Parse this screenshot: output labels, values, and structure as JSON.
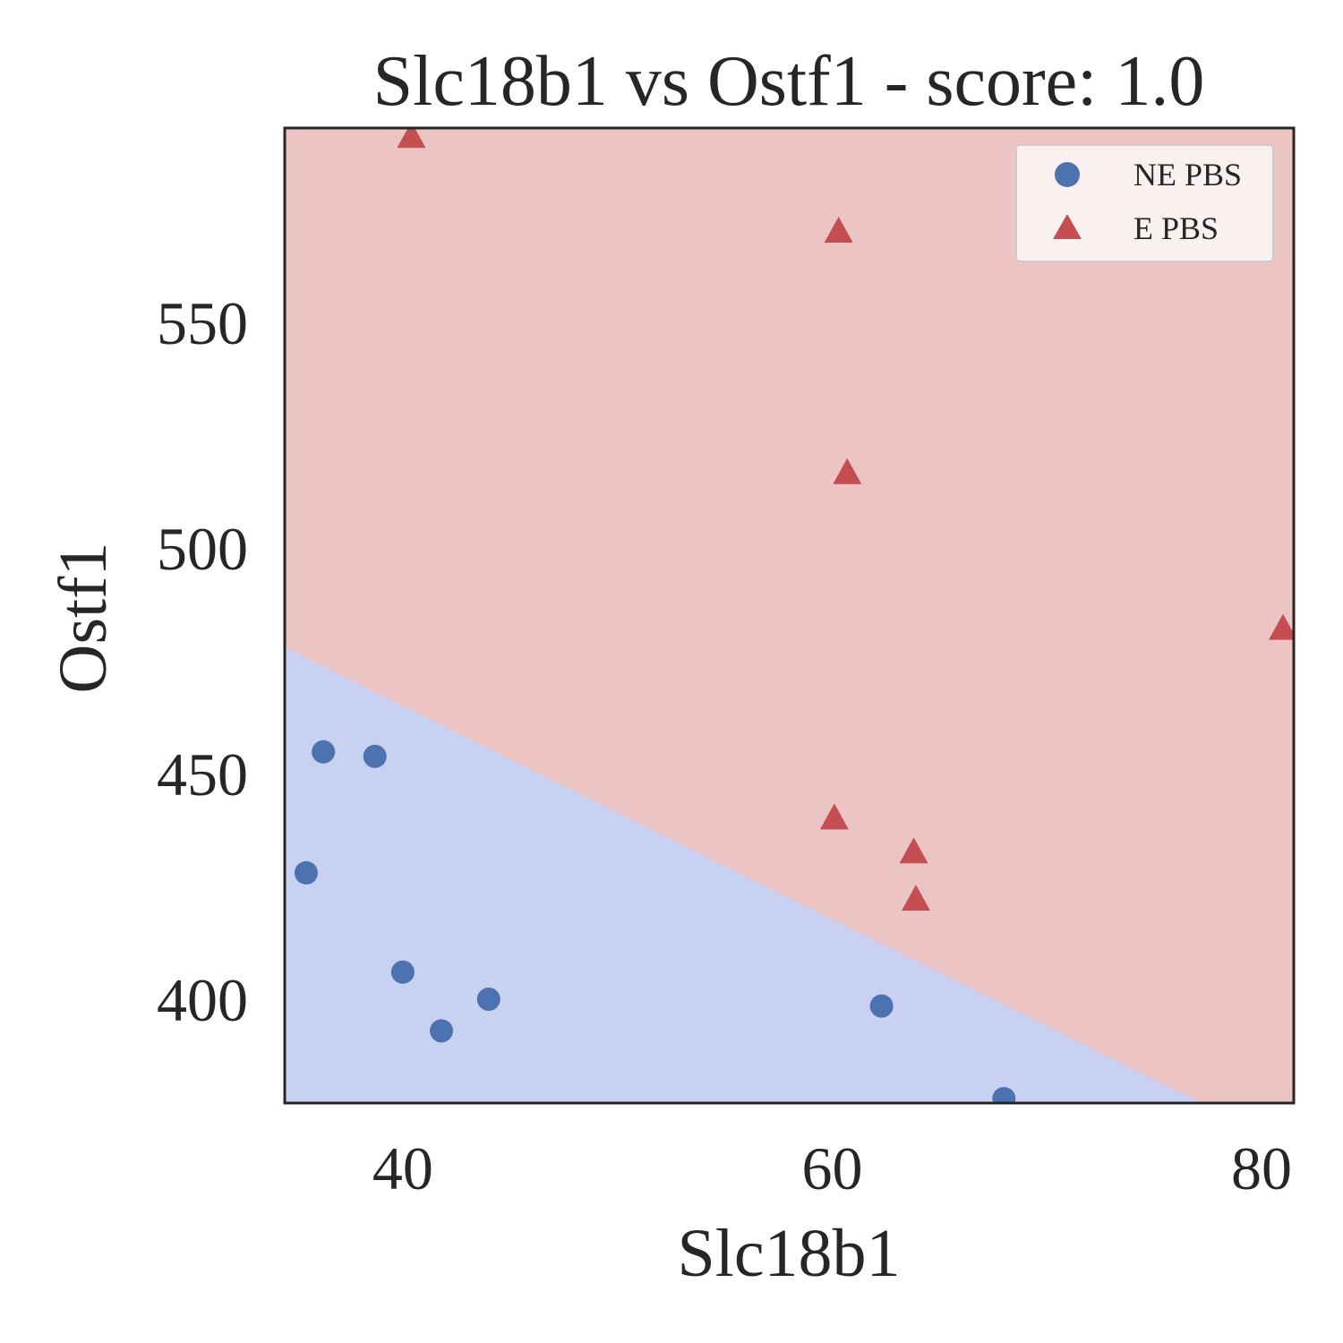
{
  "chart_data": {
    "type": "scatter",
    "title": "Slc18b1 vs Ostf1 - score: 1.0",
    "xlabel": "Slc18b1",
    "ylabel": "Ostf1",
    "xlim": [
      34.5,
      81.5
    ],
    "ylim": [
      377,
      593
    ],
    "x_ticks": [
      40,
      60,
      80
    ],
    "y_ticks": [
      400,
      450,
      500,
      550
    ],
    "grid": false,
    "legend_position": "top-right",
    "colors": {
      "ne_marker": "#4c72b0",
      "e_marker": "#c44e52",
      "ne_region": "#c8d1f1",
      "e_region": "#edc4c4",
      "frame": "#262626",
      "legend_bg": "#f9f1f0",
      "legend_border": "#cccccc"
    },
    "decision_boundary": {
      "points": [
        [
          34.5,
          478.0
        ],
        [
          77.2,
          377.0
        ]
      ]
    },
    "series": [
      {
        "name": "NE PBS",
        "marker": "circle",
        "color": "#4c72b0",
        "x": [
          36.3,
          38.7,
          35.5,
          40.0,
          41.8,
          44.0,
          62.3,
          68.0
        ],
        "y": [
          454.8,
          453.8,
          428.0,
          406.0,
          393.0,
          400.0,
          398.5,
          378.0
        ]
      },
      {
        "name": "E PBS",
        "marker": "triangle",
        "color": "#c44e52",
        "x": [
          40.4,
          60.3,
          60.7,
          60.1,
          63.8,
          63.9,
          81.0
        ],
        "y": [
          591.0,
          570.0,
          516.5,
          440.0,
          432.5,
          422.0,
          482.0
        ]
      }
    ]
  }
}
